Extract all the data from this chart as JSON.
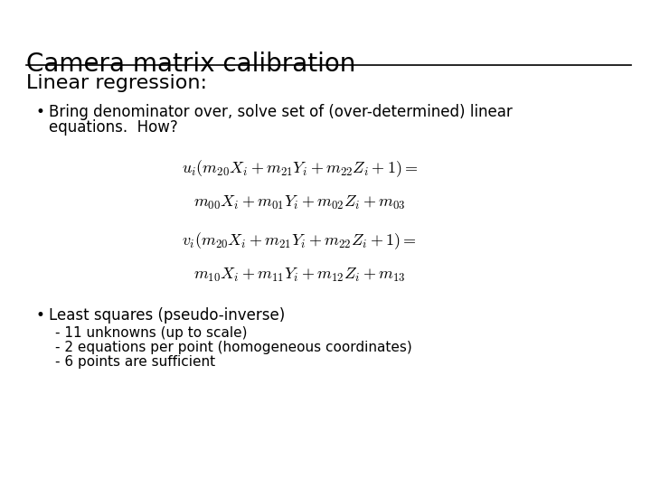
{
  "title": "Camera matrix calibration",
  "section": "Linear regression:",
  "bullet1_line1": "Bring denominator over, solve set of (over-determined) linear",
  "bullet1_line2": "equations.  How?",
  "eq1_line1": "$u_i(m_{20}X_i + m_{21}Y_i + m_{22}Z_i + 1) =$",
  "eq1_line2": "$m_{00}X_i + m_{01}Y_i + m_{02}Z_i + m_{03}$",
  "eq2_line1": "$v_i(m_{20}X_i + m_{21}Y_i + m_{22}Z_i + 1) =$",
  "eq2_line2": "$m_{10}X_i + m_{11}Y_i + m_{12}Z_i + m_{13}$",
  "bullet2": "Least squares (pseudo-inverse)",
  "sub1": "- 11 unknowns (up to scale)",
  "sub2": "- 2 equations per point (homogeneous coordinates)",
  "sub3": "- 6 points are sufficient",
  "bg_color": "#ffffff",
  "text_color": "#000000",
  "title_fontsize": 20,
  "section_fontsize": 16,
  "bullet_fontsize": 12,
  "eq_fontsize": 13,
  "sub_fontsize": 11
}
